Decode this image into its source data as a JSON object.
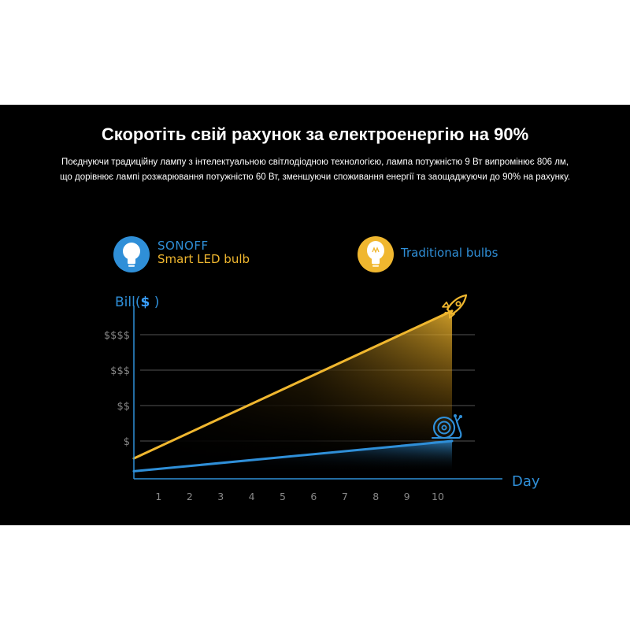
{
  "header": {
    "title": "Скоротіть свій рахунок за електроенергію на 90%",
    "description_line1": "Поєднуючи традиційну лампу з інтелектуальною світлодіодною технологією, лампа потужністю 9 Вт випромінює 806 лм,",
    "description_line2": "що дорівнює лампі розжарювання потужністю 60 Вт, зменшуючи споживання енергії та заощаджуючи до 90% на рахунку."
  },
  "legend": {
    "sonoff_brand": "SONOFF",
    "sonoff_product": "Smart LED bulb",
    "traditional": "Traditional bulbs",
    "sonoff_icon": "led-bulb-icon",
    "traditional_icon": "incandescent-bulb-icon"
  },
  "colors": {
    "background": "#000000",
    "traditional": "#f0b72f",
    "sonoff": "#2f8fd8",
    "grid": "#555555",
    "axis": "#2f8fd8",
    "tick_label": "#888888"
  },
  "chart_data": {
    "type": "line",
    "xlabel": "Day",
    "ylabel_prefix": "Bill(",
    "ylabel_symbol": "$",
    "ylabel_suffix": " )",
    "x": [
      1,
      2,
      3,
      4,
      5,
      6,
      7,
      8,
      9,
      10
    ],
    "y_categories": [
      "$",
      "$$",
      "$$$",
      "$$$$"
    ],
    "xlim": [
      0,
      11
    ],
    "ylim": [
      0,
      5
    ],
    "grid": true,
    "series": [
      {
        "name": "Traditional bulbs",
        "values": [
          0.88,
          1.29,
          1.69,
          2.1,
          2.5,
          2.91,
          3.31,
          3.72,
          4.12,
          4.53
        ],
        "marker": "rocket-icon"
      },
      {
        "name": "SONOFF Smart LED bulb",
        "values": [
          0.28,
          0.37,
          0.45,
          0.53,
          0.61,
          0.69,
          0.77,
          0.86,
          0.94,
          1.02
        ],
        "marker": "snail-icon"
      }
    ]
  }
}
